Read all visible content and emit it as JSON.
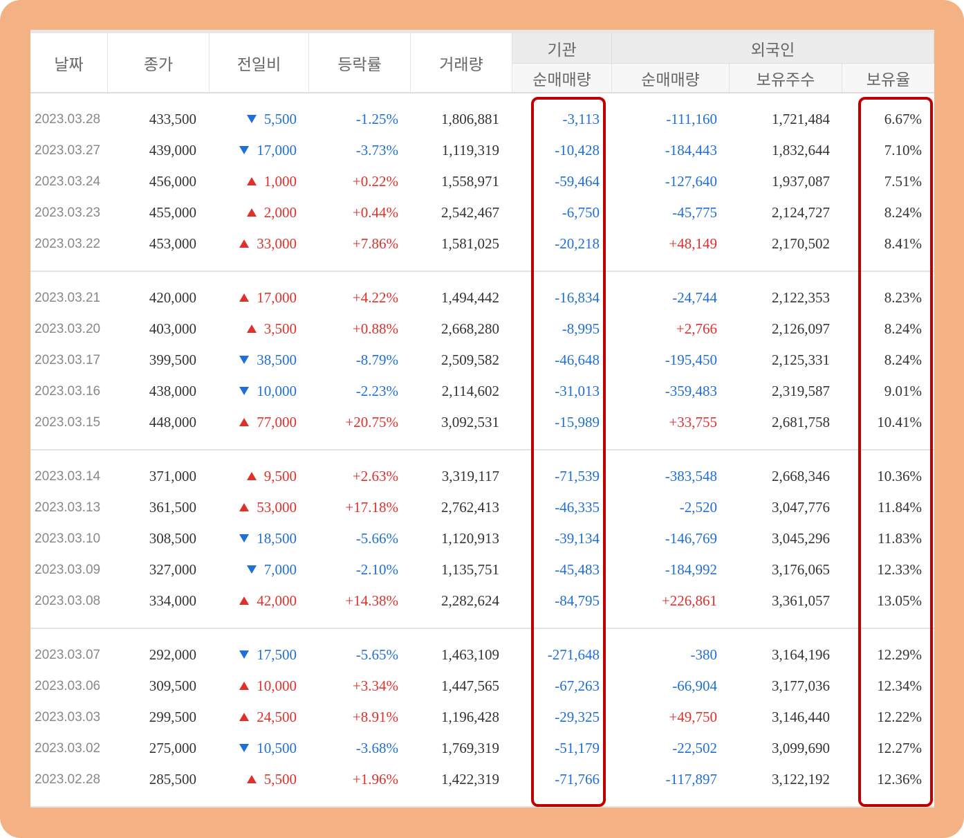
{
  "columns": {
    "date": "날짜",
    "close": "종가",
    "diff": "전일비",
    "rate": "등락률",
    "volume": "거래량",
    "institution": "기관",
    "foreign": "외국인",
    "inst_net": "순매매량",
    "foreign_net": "순매매량",
    "foreign_holdings": "보유주수",
    "foreign_ratio": "보유율"
  },
  "colors": {
    "up": "#e0302b",
    "down": "#1f6fd6",
    "highlight_box": "#c00000",
    "frame": "#f4b183"
  },
  "groups": [
    {
      "rows": [
        {
          "date": "2023.03.28",
          "close": "433,500",
          "dir": "down",
          "diff": "5,500",
          "rate": "-1.25%",
          "volume": "1,806,881",
          "inst_net": "-3,113",
          "foreign_net": "-111,160",
          "foreign_holdings": "1,721,484",
          "foreign_ratio": "6.67%"
        },
        {
          "date": "2023.03.27",
          "close": "439,000",
          "dir": "down",
          "diff": "17,000",
          "rate": "-3.73%",
          "volume": "1,119,319",
          "inst_net": "-10,428",
          "foreign_net": "-184,443",
          "foreign_holdings": "1,832,644",
          "foreign_ratio": "7.10%"
        },
        {
          "date": "2023.03.24",
          "close": "456,000",
          "dir": "up",
          "diff": "1,000",
          "rate": "+0.22%",
          "volume": "1,558,971",
          "inst_net": "-59,464",
          "foreign_net": "-127,640",
          "foreign_holdings": "1,937,087",
          "foreign_ratio": "7.51%"
        },
        {
          "date": "2023.03.23",
          "close": "455,000",
          "dir": "up",
          "diff": "2,000",
          "rate": "+0.44%",
          "volume": "2,542,467",
          "inst_net": "-6,750",
          "foreign_net": "-45,775",
          "foreign_holdings": "2,124,727",
          "foreign_ratio": "8.24%"
        },
        {
          "date": "2023.03.22",
          "close": "453,000",
          "dir": "up",
          "diff": "33,000",
          "rate": "+7.86%",
          "volume": "1,581,025",
          "inst_net": "-20,218",
          "foreign_net": "+48,149",
          "foreign_holdings": "2,170,502",
          "foreign_ratio": "8.41%"
        }
      ]
    },
    {
      "rows": [
        {
          "date": "2023.03.21",
          "close": "420,000",
          "dir": "up",
          "diff": "17,000",
          "rate": "+4.22%",
          "volume": "1,494,442",
          "inst_net": "-16,834",
          "foreign_net": "-24,744",
          "foreign_holdings": "2,122,353",
          "foreign_ratio": "8.23%"
        },
        {
          "date": "2023.03.20",
          "close": "403,000",
          "dir": "up",
          "diff": "3,500",
          "rate": "+0.88%",
          "volume": "2,668,280",
          "inst_net": "-8,995",
          "foreign_net": "+2,766",
          "foreign_holdings": "2,126,097",
          "foreign_ratio": "8.24%"
        },
        {
          "date": "2023.03.17",
          "close": "399,500",
          "dir": "down",
          "diff": "38,500",
          "rate": "-8.79%",
          "volume": "2,509,582",
          "inst_net": "-46,648",
          "foreign_net": "-195,450",
          "foreign_holdings": "2,125,331",
          "foreign_ratio": "8.24%"
        },
        {
          "date": "2023.03.16",
          "close": "438,000",
          "dir": "down",
          "diff": "10,000",
          "rate": "-2.23%",
          "volume": "2,114,602",
          "inst_net": "-31,013",
          "foreign_net": "-359,483",
          "foreign_holdings": "2,319,587",
          "foreign_ratio": "9.01%"
        },
        {
          "date": "2023.03.15",
          "close": "448,000",
          "dir": "up",
          "diff": "77,000",
          "rate": "+20.75%",
          "volume": "3,092,531",
          "inst_net": "-15,989",
          "foreign_net": "+33,755",
          "foreign_holdings": "2,681,758",
          "foreign_ratio": "10.41%"
        }
      ]
    },
    {
      "rows": [
        {
          "date": "2023.03.14",
          "close": "371,000",
          "dir": "up",
          "diff": "9,500",
          "rate": "+2.63%",
          "volume": "3,319,117",
          "inst_net": "-71,539",
          "foreign_net": "-383,548",
          "foreign_holdings": "2,668,346",
          "foreign_ratio": "10.36%"
        },
        {
          "date": "2023.03.13",
          "close": "361,500",
          "dir": "up",
          "diff": "53,000",
          "rate": "+17.18%",
          "volume": "2,762,413",
          "inst_net": "-46,335",
          "foreign_net": "-2,520",
          "foreign_holdings": "3,047,776",
          "foreign_ratio": "11.84%"
        },
        {
          "date": "2023.03.10",
          "close": "308,500",
          "dir": "down",
          "diff": "18,500",
          "rate": "-5.66%",
          "volume": "1,120,913",
          "inst_net": "-39,134",
          "foreign_net": "-146,769",
          "foreign_holdings": "3,045,296",
          "foreign_ratio": "11.83%"
        },
        {
          "date": "2023.03.09",
          "close": "327,000",
          "dir": "down",
          "diff": "7,000",
          "rate": "-2.10%",
          "volume": "1,135,751",
          "inst_net": "-45,483",
          "foreign_net": "-184,992",
          "foreign_holdings": "3,176,065",
          "foreign_ratio": "12.33%"
        },
        {
          "date": "2023.03.08",
          "close": "334,000",
          "dir": "up",
          "diff": "42,000",
          "rate": "+14.38%",
          "volume": "2,282,624",
          "inst_net": "-84,795",
          "foreign_net": "+226,861",
          "foreign_holdings": "3,361,057",
          "foreign_ratio": "13.05%"
        }
      ]
    },
    {
      "rows": [
        {
          "date": "2023.03.07",
          "close": "292,000",
          "dir": "down",
          "diff": "17,500",
          "rate": "-5.65%",
          "volume": "1,463,109",
          "inst_net": "-271,648",
          "foreign_net": "-380",
          "foreign_holdings": "3,164,196",
          "foreign_ratio": "12.29%"
        },
        {
          "date": "2023.03.06",
          "close": "309,500",
          "dir": "up",
          "diff": "10,000",
          "rate": "+3.34%",
          "volume": "1,447,565",
          "inst_net": "-67,263",
          "foreign_net": "-66,904",
          "foreign_holdings": "3,177,036",
          "foreign_ratio": "12.34%"
        },
        {
          "date": "2023.03.03",
          "close": "299,500",
          "dir": "up",
          "diff": "24,500",
          "rate": "+8.91%",
          "volume": "1,196,428",
          "inst_net": "-29,325",
          "foreign_net": "+49,750",
          "foreign_holdings": "3,146,440",
          "foreign_ratio": "12.22%"
        },
        {
          "date": "2023.03.02",
          "close": "275,000",
          "dir": "down",
          "diff": "10,500",
          "rate": "-3.68%",
          "volume": "1,769,319",
          "inst_net": "-51,179",
          "foreign_net": "-22,502",
          "foreign_holdings": "3,099,690",
          "foreign_ratio": "12.27%"
        },
        {
          "date": "2023.02.28",
          "close": "285,500",
          "dir": "up",
          "diff": "5,500",
          "rate": "+1.96%",
          "volume": "1,422,319",
          "inst_net": "-71,766",
          "foreign_net": "-117,897",
          "foreign_holdings": "3,122,192",
          "foreign_ratio": "12.36%"
        }
      ]
    }
  ]
}
